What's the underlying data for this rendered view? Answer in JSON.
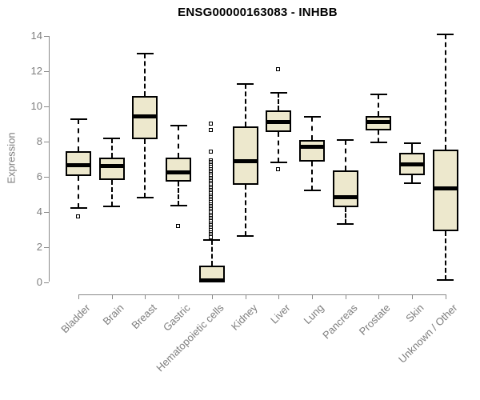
{
  "title": "ENSG00000163083 - INHBB",
  "colors": {
    "box_fill": "#EDE8CD",
    "box_border": "#000000",
    "axis": "#8a8a8a",
    "label": "#7d7d7d",
    "title": "#000000"
  },
  "chart_data": {
    "type": "boxplot",
    "title": "ENSG00000163083 - INHBB",
    "xlabel": "",
    "ylabel": "Expression",
    "ylim": [
      0,
      14
    ],
    "yticks": [
      0,
      2,
      4,
      6,
      8,
      10,
      12,
      14
    ],
    "grid": false,
    "legend": "none",
    "categories": [
      "Bladder",
      "Brain",
      "Breast",
      "Gastric",
      "Hematopoietic cells",
      "Kidney",
      "Liver",
      "Lung",
      "Pancreas",
      "Prostate",
      "Skin",
      "Unknown / Other"
    ],
    "series": [
      {
        "category": "Bladder",
        "whisker_low": 4.2,
        "q1": 6.05,
        "median": 6.65,
        "q3": 7.45,
        "whisker_high": 9.3,
        "outliers": [
          3.7
        ]
      },
      {
        "category": "Brain",
        "whisker_low": 4.3,
        "q1": 5.8,
        "median": 6.6,
        "q3": 7.1,
        "whisker_high": 8.2,
        "outliers": []
      },
      {
        "category": "Breast",
        "whisker_low": 4.8,
        "q1": 8.15,
        "median": 9.45,
        "q3": 10.6,
        "whisker_high": 13.0,
        "outliers": []
      },
      {
        "category": "Gastric",
        "whisker_low": 4.35,
        "q1": 5.7,
        "median": 6.25,
        "q3": 7.1,
        "whisker_high": 8.9,
        "outliers": [
          3.15
        ]
      },
      {
        "category": "Hematopoietic cells",
        "whisker_low": 0.0,
        "q1": 0.0,
        "median": 0.1,
        "q3": 0.95,
        "whisker_high": 2.4,
        "outliers": [
          9.0,
          8.6,
          7.4,
          6.9,
          6.8,
          6.7,
          6.6,
          6.5,
          6.4,
          6.3,
          6.2,
          6.1,
          6.0,
          5.9,
          5.8,
          5.7,
          5.6,
          5.5,
          5.4,
          5.3,
          5.2,
          5.1,
          5.0,
          4.9,
          4.8,
          4.7,
          4.6,
          4.5,
          4.4,
          4.3,
          4.2,
          4.1,
          4.0,
          3.9,
          3.8,
          3.7,
          3.6,
          3.5,
          3.4,
          3.3,
          3.2,
          3.1,
          3.0,
          2.9,
          2.8,
          2.7,
          2.6,
          2.5
        ]
      },
      {
        "category": "Kidney",
        "whisker_low": 2.6,
        "q1": 5.55,
        "median": 6.9,
        "q3": 8.85,
        "whisker_high": 11.3,
        "outliers": []
      },
      {
        "category": "Liver",
        "whisker_low": 6.8,
        "q1": 8.55,
        "median": 9.1,
        "q3": 9.8,
        "whisker_high": 10.8,
        "outliers": [
          12.1,
          6.4
        ]
      },
      {
        "category": "Lung",
        "whisker_low": 5.2,
        "q1": 6.85,
        "median": 7.7,
        "q3": 8.1,
        "whisker_high": 9.4,
        "outliers": []
      },
      {
        "category": "Pancreas",
        "whisker_low": 3.3,
        "q1": 4.25,
        "median": 4.85,
        "q3": 6.35,
        "whisker_high": 8.1,
        "outliers": []
      },
      {
        "category": "Prostate",
        "whisker_low": 7.95,
        "q1": 8.65,
        "median": 9.1,
        "q3": 9.45,
        "whisker_high": 10.7,
        "outliers": []
      },
      {
        "category": "Skin",
        "whisker_low": 5.65,
        "q1": 6.1,
        "median": 6.7,
        "q3": 7.35,
        "whisker_high": 7.9,
        "outliers": []
      },
      {
        "category": "Unknown / Other",
        "whisker_low": 0.1,
        "q1": 2.9,
        "median": 5.35,
        "q3": 7.55,
        "whisker_high": 14.1,
        "outliers": []
      }
    ]
  }
}
